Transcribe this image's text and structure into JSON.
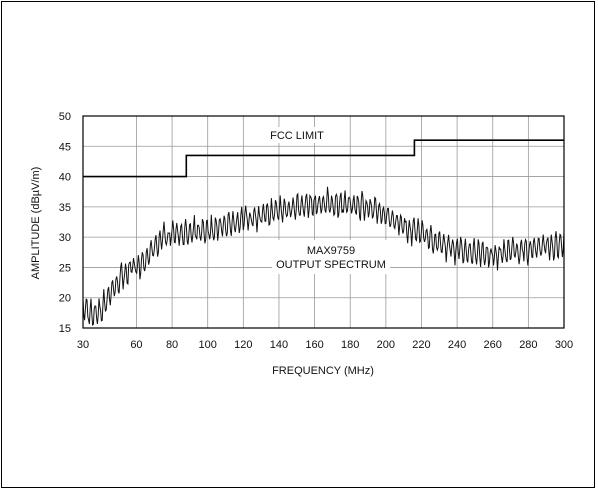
{
  "chart_data": {
    "type": "line",
    "title": "",
    "xlabel": "FREQUENCY (MHz)",
    "ylabel": "AMPLITUDE (dBµV/m)",
    "xlim": [
      30,
      300
    ],
    "ylim": [
      15,
      50
    ],
    "x_ticks": [
      30,
      60,
      80,
      100,
      120,
      140,
      160,
      180,
      200,
      220,
      240,
      260,
      280,
      300
    ],
    "y_ticks": [
      15,
      20,
      25,
      30,
      35,
      40,
      45,
      50
    ],
    "grid": true,
    "annotations": {
      "fcc": "FCC LIMIT",
      "spectrum_line1": "MAX9759",
      "spectrum_line2": "OUTPUT SPECTRUM"
    },
    "series": [
      {
        "name": "FCC LIMIT",
        "style": "step",
        "x": [
          30,
          88,
          88,
          216,
          216,
          300
        ],
        "y": [
          40,
          40,
          43.5,
          43.5,
          46,
          46
        ]
      },
      {
        "name": "MAX9759 OUTPUT SPECTRUM",
        "style": "noisy",
        "x": [
          30,
          35,
          40,
          45,
          50,
          55,
          60,
          65,
          70,
          75,
          80,
          85,
          90,
          95,
          100,
          110,
          120,
          130,
          140,
          150,
          160,
          170,
          180,
          190,
          200,
          210,
          220,
          230,
          240,
          250,
          260,
          270,
          280,
          290,
          300
        ],
        "y": [
          18.5,
          17,
          18,
          20.5,
          23,
          24.5,
          25,
          26,
          28.5,
          30,
          30.5,
          30.5,
          30.5,
          31,
          31,
          32,
          33,
          33.5,
          34.5,
          35,
          35.5,
          35.5,
          35.5,
          35,
          33.5,
          32,
          30.5,
          29,
          28,
          27.5,
          27,
          27.5,
          28,
          28.5,
          28.5
        ]
      }
    ]
  }
}
